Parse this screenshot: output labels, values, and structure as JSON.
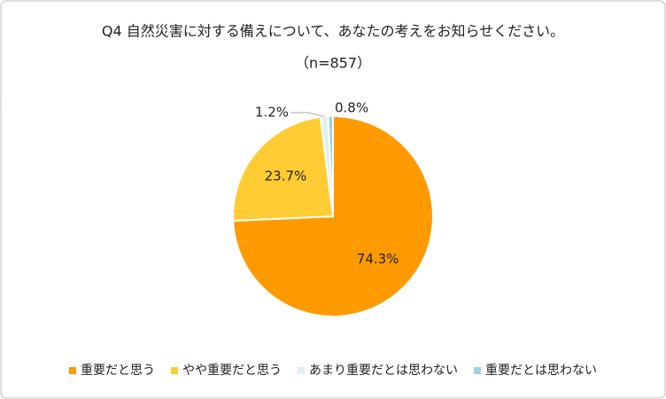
{
  "chart_data": {
    "type": "pie",
    "title": "Q4 自然災害に対する備えについて、あなたの考えをお知らせください。",
    "subtitle": "（n=857）",
    "categories": [
      "重要だと思う",
      "やや重要だと思う",
      "あまり重要だとは思わない",
      "重要だとは思わない"
    ],
    "values": [
      74.3,
      23.7,
      1.2,
      0.8
    ],
    "value_labels": [
      "74.3%",
      "23.7%",
      "1.2%",
      "0.8%"
    ],
    "colors": [
      "#FF9A00",
      "#FFCC33",
      "#DDF1F1",
      "#9CD3E3"
    ],
    "legend": "bottom"
  }
}
